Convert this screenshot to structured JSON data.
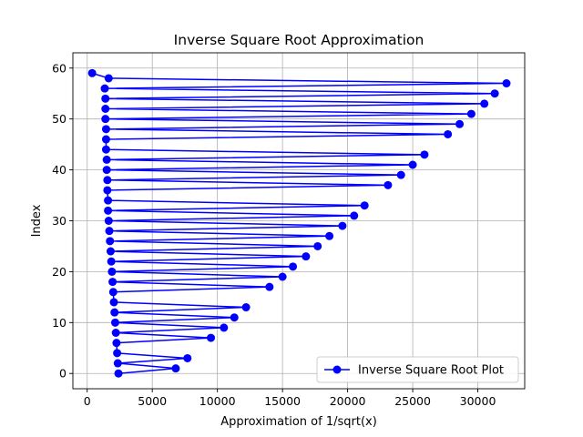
{
  "chart_data": {
    "type": "line",
    "title": "Inverse Square Root Approximation",
    "xlabel": "Approximation of 1/sqrt(x)",
    "ylabel": "Index",
    "xlim": [
      -1100,
      33600
    ],
    "ylim": [
      -3,
      63
    ],
    "xticks": [
      0,
      5000,
      10000,
      15000,
      20000,
      25000,
      30000
    ],
    "yticks": [
      0,
      10,
      20,
      30,
      40,
      50,
      60
    ],
    "grid": true,
    "legend_position": "lower-right",
    "series": [
      {
        "name": "Inverse Square Root Plot",
        "color": "#0000ff",
        "marker": "circle",
        "x": [
          2400,
          6800,
          2350,
          7700,
          2300,
          2250,
          9500,
          2200,
          10500,
          2150,
          11300,
          2100,
          12200,
          2050,
          2000,
          14000,
          1950,
          15000,
          1900,
          15800,
          1850,
          16800,
          1800,
          17700,
          1750,
          18600,
          1700,
          19600,
          1650,
          20500,
          1600,
          21300,
          1600,
          1550,
          23100,
          1550,
          24100,
          1500,
          25000,
          1500,
          25900,
          1450,
          1450,
          27700,
          1450,
          28600,
          1400,
          29500,
          1400,
          30500,
          1400,
          31300,
          1350,
          32200,
          1650,
          380
        ],
        "y": [
          0,
          1,
          2,
          3,
          4,
          6,
          7,
          8,
          9,
          10,
          11,
          12,
          13,
          14,
          16,
          17,
          18,
          19,
          20,
          21,
          22,
          23,
          24,
          25,
          26,
          27,
          28,
          29,
          30,
          31,
          32,
          33,
          34,
          36,
          37,
          38,
          39,
          40,
          41,
          42,
          43,
          44,
          46,
          47,
          48,
          49,
          50,
          51,
          52,
          53,
          54,
          55,
          56,
          57,
          58,
          59
        ]
      }
    ]
  }
}
